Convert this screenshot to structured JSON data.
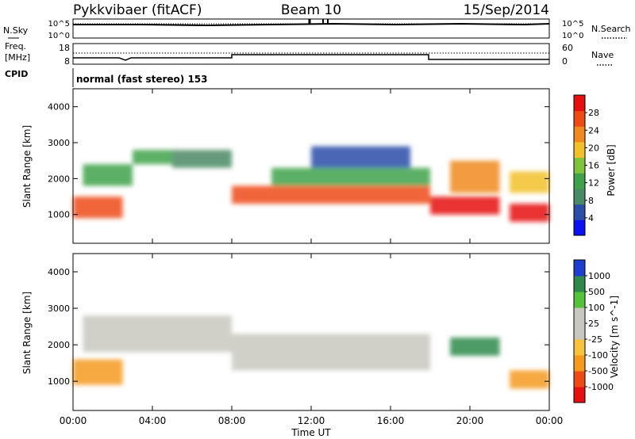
{
  "header": {
    "station": "Pykkvibaer (fitACF)",
    "beam": "Beam 10",
    "date": "15/Sep/2014"
  },
  "panels": {
    "nsky": {
      "left_label": "N.Sky",
      "left_ticks": [
        "10^5",
        "10^0"
      ],
      "right_ticks": [
        "10^5",
        "10^0"
      ],
      "right_label": "N.Search"
    },
    "freq": {
      "left_label_1": "Freq.",
      "left_label_2": "[MHz]",
      "left_ticks": [
        "18",
        "8"
      ],
      "right_ticks": [
        "60",
        "0"
      ],
      "right_label": "Nave"
    },
    "cpid": {
      "label": "CPID",
      "text": "normal (fast stereo) 153"
    }
  },
  "colors": {
    "power_scale": [
      "#0a12f0",
      "#2b4ea8",
      "#4a8a64",
      "#3fa24a",
      "#7fc23c",
      "#f2c12a",
      "#f08a1e",
      "#ee4a14",
      "#e61010"
    ],
    "velocity_scale": [
      "#e61010",
      "#f04a14",
      "#f59a1c",
      "#f7c23c",
      "#c8c8c0",
      "#c8c8c0",
      "#56c23c",
      "#2e8a4a",
      "#1e3ed0"
    ]
  },
  "chart_data": [
    {
      "type": "heatmap",
      "name": "power",
      "ylabel": "Slant Range [km]",
      "yticks": [
        "4000",
        "3000",
        "2000",
        "1000"
      ],
      "ytick_values": [
        4000,
        3000,
        2000,
        1000
      ],
      "ylim": [
        200,
        4500
      ],
      "xlim": [
        0,
        24
      ],
      "colorbar_label": "Power [dB]",
      "colorbar_ticks": [
        "28",
        "24",
        "20",
        "16",
        "12",
        "8",
        "4"
      ],
      "colorbar_range": [
        0,
        32
      ],
      "regions": [
        {
          "x": [
            0,
            2.5
          ],
          "y": [
            900,
            1500
          ],
          "value": 28
        },
        {
          "x": [
            0.5,
            3
          ],
          "y": [
            1800,
            2400
          ],
          "value": 14
        },
        {
          "x": [
            3,
            5
          ],
          "y": [
            2400,
            2800
          ],
          "value": 12
        },
        {
          "x": [
            5,
            8
          ],
          "y": [
            2300,
            2800
          ],
          "value": 10
        },
        {
          "x": [
            8,
            18
          ],
          "y": [
            1300,
            1800
          ],
          "value": 26
        },
        {
          "x": [
            10,
            18
          ],
          "y": [
            1800,
            2300
          ],
          "value": 12
        },
        {
          "x": [
            12,
            17
          ],
          "y": [
            2300,
            2900
          ],
          "value": 6
        },
        {
          "x": [
            18,
            21.5
          ],
          "y": [
            1000,
            1500
          ],
          "value": 29
        },
        {
          "x": [
            19,
            21.5
          ],
          "y": [
            1600,
            2500
          ],
          "value": 22
        },
        {
          "x": [
            22,
            24
          ],
          "y": [
            800,
            1300
          ],
          "value": 30
        },
        {
          "x": [
            22,
            24
          ],
          "y": [
            1600,
            2200
          ],
          "value": 18
        }
      ]
    },
    {
      "type": "heatmap",
      "name": "velocity",
      "ylabel": "Slant Range [km]",
      "yticks": [
        "4000",
        "3000",
        "2000",
        "1000"
      ],
      "ytick_values": [
        4000,
        3000,
        2000,
        1000
      ],
      "ylim": [
        200,
        4500
      ],
      "xlim": [
        0,
        24
      ],
      "colorbar_label": "Velocity [m s^-1]",
      "colorbar_ticks": [
        "1000",
        "500",
        "100",
        "25",
        "-25",
        "-100",
        "-500",
        "-1000"
      ],
      "regions": [
        {
          "x": [
            0,
            2.5
          ],
          "y": [
            900,
            1600
          ],
          "value": -300
        },
        {
          "x": [
            0.5,
            8
          ],
          "y": [
            1800,
            2800
          ],
          "value": 0
        },
        {
          "x": [
            8,
            18
          ],
          "y": [
            1300,
            2300
          ],
          "value": 0
        },
        {
          "x": [
            19,
            21.5
          ],
          "y": [
            1700,
            2200
          ],
          "value": 400
        },
        {
          "x": [
            22,
            24
          ],
          "y": [
            800,
            1300
          ],
          "value": -200
        }
      ]
    }
  ],
  "x_axis": {
    "label": "Time UT",
    "ticks": [
      "00:00",
      "04:00",
      "08:00",
      "12:00",
      "16:00",
      "20:00",
      "00:00"
    ],
    "tick_values": [
      0,
      4,
      8,
      12,
      16,
      20,
      24
    ]
  }
}
